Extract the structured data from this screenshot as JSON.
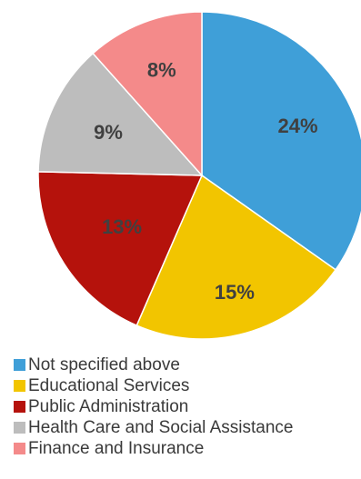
{
  "chart_data": {
    "type": "pie",
    "categories": [
      "Not specified above",
      "Educational Services",
      "Public Administration",
      "Health Care and Social Assistance",
      "Finance and Insurance"
    ],
    "values": [
      24,
      15,
      13,
      9,
      8
    ],
    "labels": [
      "24%",
      "15%",
      "13%",
      "9%",
      "8%"
    ],
    "colors": [
      "#3f9fd8",
      "#f2c500",
      "#b5120c",
      "#bdbdbd",
      "#f48a8a"
    ],
    "start": "top (12 o'clock), clockwise",
    "legend_position": "bottom"
  }
}
